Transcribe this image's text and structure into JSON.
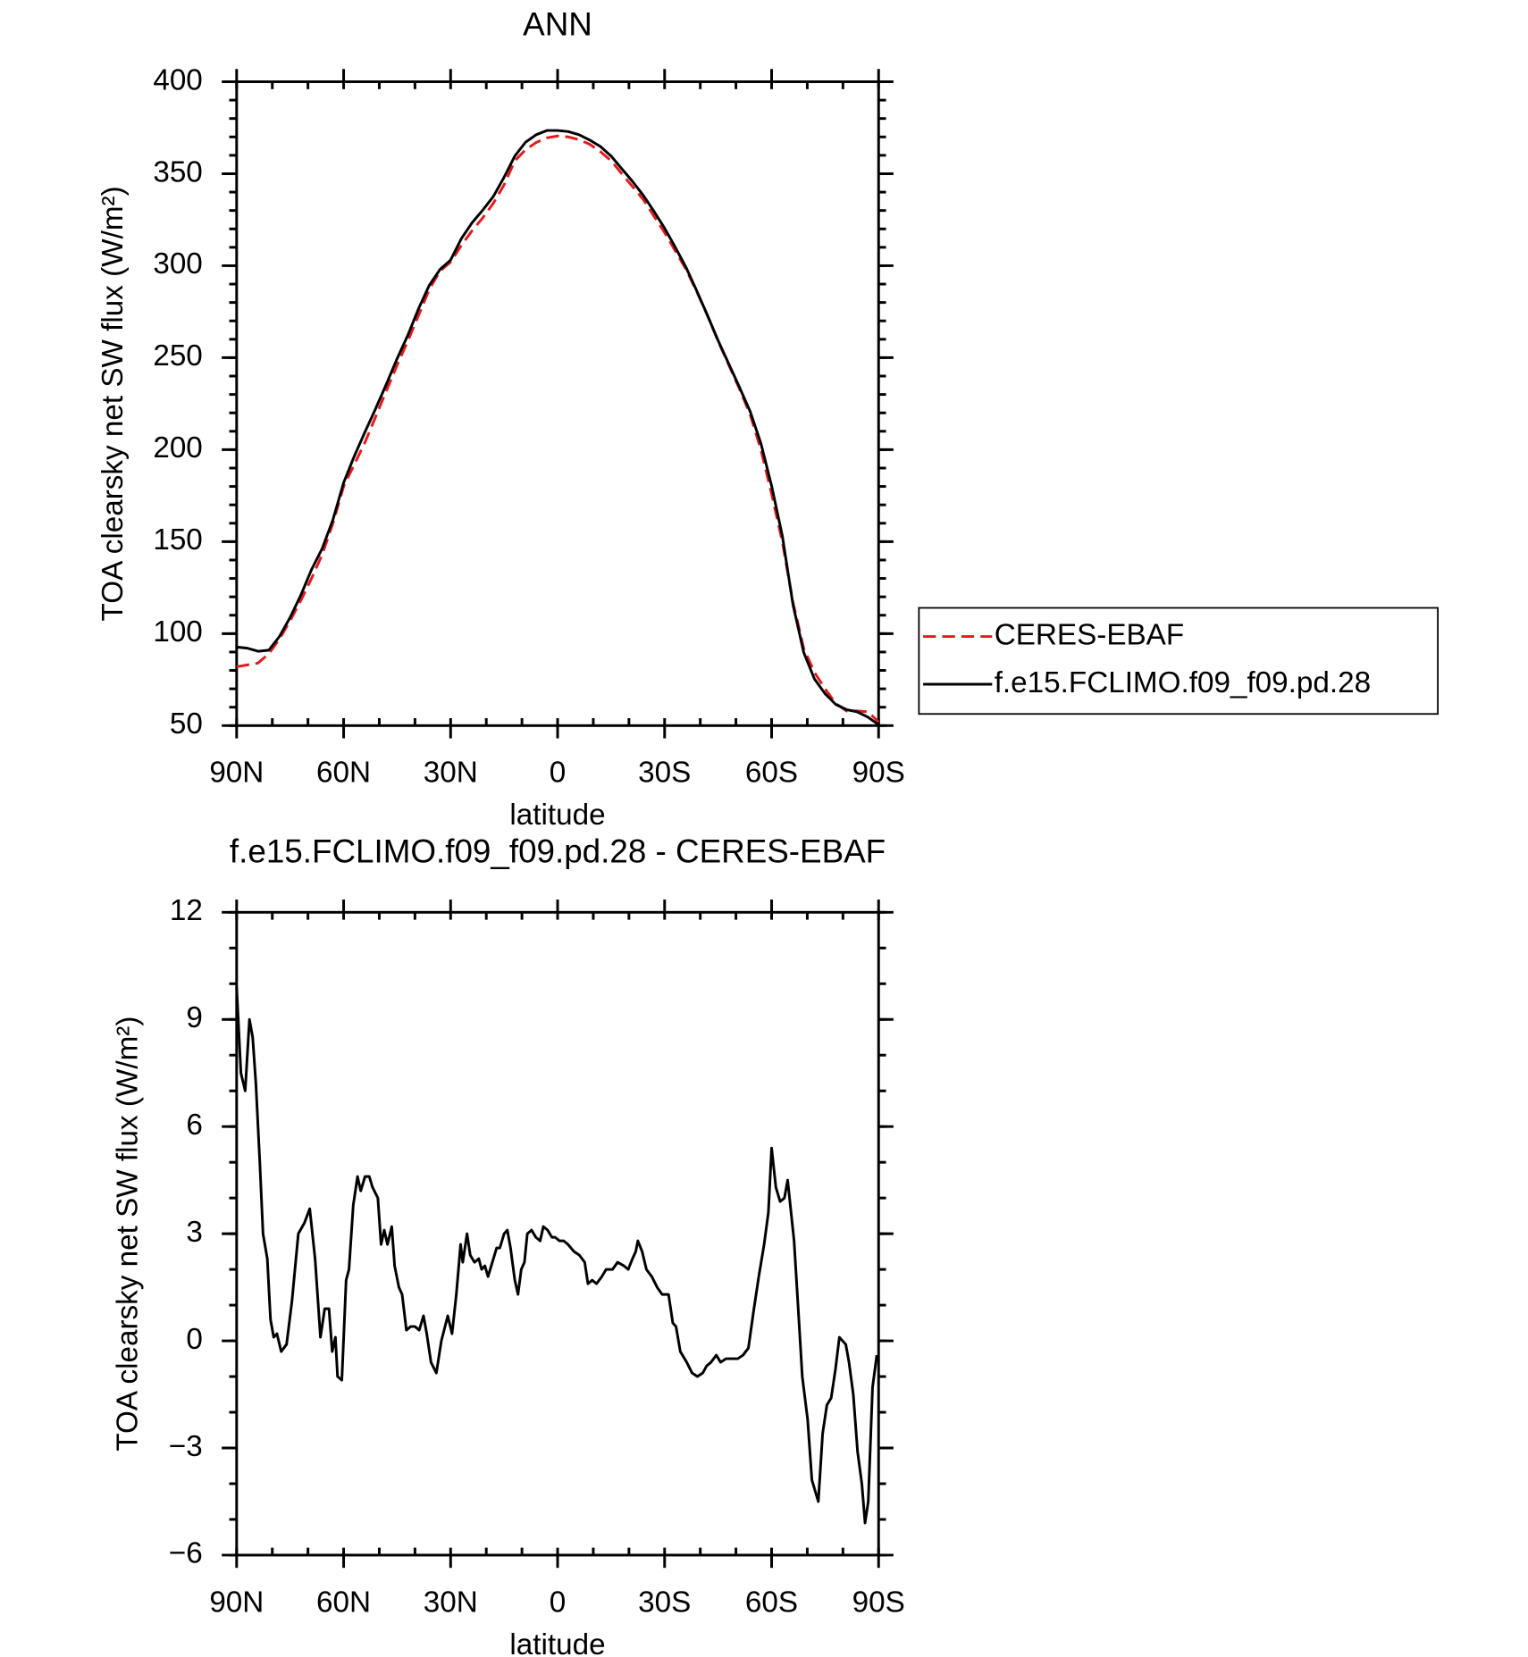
{
  "chart_data": [
    {
      "type": "line",
      "title": "ANN",
      "x_label": "latitude",
      "y_label": "TOA clearsky net SW flux (W/m²)",
      "xlim": [
        90,
        -90
      ],
      "xticks": [
        {
          "value": 90,
          "label": "90N"
        },
        {
          "value": 60,
          "label": "60N"
        },
        {
          "value": 30,
          "label": "30N"
        },
        0,
        {
          "value": -30,
          "label": "30S"
        },
        {
          "value": -60,
          "label": "60S"
        },
        {
          "value": -90,
          "label": "90S"
        }
      ],
      "xminor_ticks": [
        90,
        80,
        70,
        60,
        50,
        40,
        30,
        20,
        10,
        0,
        -10,
        -20,
        -30,
        -40,
        -50,
        -60,
        -70,
        -80,
        -90
      ],
      "ylim": [
        50,
        400
      ],
      "yticks": [
        50,
        100,
        150,
        200,
        250,
        300,
        350,
        400
      ],
      "yminor_ticks": [
        50,
        60,
        70,
        80,
        90,
        100,
        110,
        120,
        130,
        140,
        150,
        160,
        170,
        180,
        190,
        200,
        210,
        220,
        230,
        240,
        250,
        260,
        270,
        280,
        290,
        300,
        310,
        320,
        330,
        340,
        350,
        360,
        370,
        380,
        390,
        400
      ],
      "legend": "outside-right",
      "series": [
        {
          "name": "CERES-EBAF",
          "color": "#e41a1c",
          "dash": true,
          "x": [
            90,
            87,
            84,
            81,
            78,
            75,
            72,
            69,
            66,
            63,
            60,
            57,
            54,
            51,
            48,
            45,
            42,
            39,
            36,
            33,
            30,
            27,
            24,
            21,
            18,
            15,
            12,
            9,
            6,
            3,
            0,
            -3,
            -6,
            -9,
            -12,
            -15,
            -18,
            -21,
            -24,
            -27,
            -30,
            -33,
            -36,
            -39,
            -42,
            -45,
            -48,
            -51,
            -54,
            -57,
            -60,
            -63,
            -66,
            -69,
            -72,
            -75,
            -78,
            -81,
            -84,
            -87,
            -90
          ],
          "values": [
            82,
            83,
            84,
            89,
            97,
            107,
            118,
            130,
            143,
            160,
            180,
            192,
            204,
            218,
            232,
            246,
            259,
            273,
            287,
            297,
            302,
            311,
            319,
            326,
            334,
            344,
            357,
            363,
            367,
            369.5,
            370.5,
            370,
            368.5,
            366,
            362,
            357,
            350,
            343,
            336,
            327,
            318,
            308,
            298,
            286,
            273,
            259,
            246,
            233,
            219,
            200,
            176,
            150,
            117,
            92,
            79,
            70,
            62,
            58,
            58,
            57.5,
            52
          ]
        },
        {
          "name": "f.e15.FCLIMO.f09_f09.pd.28",
          "color": "#000000",
          "dash": false,
          "x": [
            90,
            87,
            84,
            81,
            78,
            75,
            72,
            69,
            66,
            63,
            60,
            57,
            54,
            51,
            48,
            45,
            42,
            39,
            36,
            33,
            30,
            27,
            24,
            21,
            18,
            15,
            12,
            9,
            6,
            3,
            0,
            -3,
            -6,
            -9,
            -12,
            -15,
            -18,
            -21,
            -24,
            -27,
            -30,
            -33,
            -36,
            -39,
            -42,
            -45,
            -48,
            -51,
            -54,
            -57,
            -60,
            -63,
            -66,
            -69,
            -72,
            -75,
            -78,
            -81,
            -84,
            -87,
            -90
          ],
          "values": [
            92.7,
            92.1,
            90.4,
            91,
            98.4,
            108.8,
            120.9,
            134.8,
            146.3,
            161.9,
            182,
            196.5,
            209.7,
            222.4,
            235.7,
            249.5,
            262.2,
            276.6,
            289.3,
            297.9,
            303.1,
            314.7,
            323.3,
            330.2,
            337.7,
            348.1,
            359.6,
            367.1,
            371.2,
            373.5,
            373.5,
            372.9,
            371.2,
            368.3,
            364.8,
            359.6,
            352.7,
            345.8,
            338.3,
            329.6,
            320.4,
            310,
            299.1,
            286.4,
            273.1,
            259.3,
            246.6,
            233.9,
            220.7,
            203.4,
            180.3,
            153.2,
            115.7,
            89.8,
            75.4,
            67.3,
            61.5,
            58.7,
            57.5,
            54.6,
            50.5
          ]
        }
      ]
    },
    {
      "type": "line",
      "title": "f.e15.FCLIMO.f09_f09.pd.28 - CERES-EBAF",
      "x_label": "latitude",
      "y_label": "TOA clearsky net SW flux (W/m²)",
      "xlim": [
        90,
        -90
      ],
      "xticks": [
        {
          "value": 90,
          "label": "90N"
        },
        {
          "value": 60,
          "label": "60N"
        },
        {
          "value": 30,
          "label": "30N"
        },
        0,
        {
          "value": -30,
          "label": "30S"
        },
        {
          "value": -60,
          "label": "60S"
        },
        {
          "value": -90,
          "label": "90S"
        }
      ],
      "xminor_ticks": [
        90,
        80,
        70,
        60,
        50,
        40,
        30,
        20,
        10,
        0,
        -10,
        -20,
        -30,
        -40,
        -50,
        -60,
        -70,
        -80,
        -90
      ],
      "ylim": [
        -6,
        12
      ],
      "yticks": [
        {
          "value": -6,
          "label": "−6"
        },
        {
          "value": -3,
          "label": "−3"
        },
        0,
        3,
        6,
        9,
        12
      ],
      "yminor_ticks": [
        -6,
        -5,
        -4,
        -3,
        -2,
        -1,
        0,
        1,
        2,
        3,
        4,
        5,
        6,
        7,
        8,
        9,
        10,
        11,
        12
      ],
      "series": [
        {
          "color": "#000000",
          "dash": false,
          "x": [
            90,
            88.8,
            87.6,
            86.4,
            85.5,
            84.6,
            83.5,
            82.6,
            81.4,
            80.5,
            79.6,
            78.7,
            77.5,
            76,
            74.5,
            72.7,
            71,
            69.5,
            68,
            66.5,
            65.3,
            64.1,
            63.2,
            62.3,
            61.7,
            60.5,
            59.3,
            58.5,
            57.3,
            56.1,
            55.2,
            54,
            52.8,
            51.9,
            50.4,
            49.5,
            48.6,
            47.7,
            46.5,
            45.7,
            44.5,
            43.6,
            42.4,
            41.2,
            40,
            38.8,
            37.6,
            36.7,
            35.5,
            34,
            32.6,
            30.8,
            29.6,
            28.4,
            27.2,
            26.6,
            25.4,
            24.5,
            23.3,
            22.1,
            21.3,
            20.4,
            19.5,
            18.3,
            17.1,
            16.2,
            15,
            14.1,
            13.2,
            12,
            11.1,
            10.2,
            9.3,
            8.5,
            7.3,
            6.1,
            4.9,
            4,
            2.8,
            1.6,
            0.7,
            -0.5,
            -1.7,
            -2.9,
            -4.6,
            -6.1,
            -7.6,
            -8.5,
            -9.7,
            -10.9,
            -12.4,
            -13.6,
            -15.4,
            -16.8,
            -18.6,
            -19.8,
            -21,
            -21.9,
            -22.5,
            -23.7,
            -24.9,
            -26.4,
            -27.9,
            -29.3,
            -31.1,
            -32.3,
            -33.2,
            -34.4,
            -36.2,
            -37.7,
            -39.2,
            -40.7,
            -41.8,
            -43,
            -44.5,
            -45.7,
            -47.2,
            -49,
            -50.5,
            -52,
            -53.5,
            -54.9,
            -56.4,
            -57.9,
            -59.1,
            -60,
            -61.2,
            -62.4,
            -63.6,
            -64.5,
            -66.3,
            -67.4,
            -68.6,
            -70.1,
            -71.3,
            -73.1,
            -74.3,
            -75.5,
            -76.7,
            -77.9,
            -79,
            -80.8,
            -81.7,
            -82.9,
            -84.1,
            -85.3,
            -86.2,
            -87.1,
            -88.3,
            -89.5
          ],
          "values": [
            9.9,
            7.5,
            7.0,
            9.0,
            8.5,
            7.2,
            5,
            3.0,
            2.3,
            0.6,
            0.1,
            0.2,
            -0.3,
            -0.1,
            1.1,
            3.0,
            3.3,
            3.7,
            2.3,
            0.1,
            0.9,
            0.9,
            -0.3,
            0.1,
            -1.0,
            -1.1,
            1.7,
            2.0,
            3.8,
            4.6,
            4.2,
            4.6,
            4.6,
            4.3,
            4.0,
            2.7,
            3.1,
            2.7,
            3.2,
            2.1,
            1.5,
            1.3,
            0.3,
            0.4,
            0.4,
            0.3,
            0.7,
            0.2,
            -0.6,
            -0.9,
            0,
            0.7,
            0.2,
            1.3,
            2.7,
            2.2,
            3.0,
            2.4,
            2.2,
            2.3,
            2.0,
            2.1,
            1.8,
            2.2,
            2.6,
            2.6,
            3.0,
            3.1,
            2.6,
            1.7,
            1.3,
            2.0,
            2.2,
            3.0,
            3.1,
            2.9,
            2.8,
            3.2,
            3.1,
            2.9,
            2.9,
            2.8,
            2.8,
            2.7,
            2.5,
            2.4,
            2.2,
            1.6,
            1.7,
            1.6,
            1.8,
            2.0,
            2.0,
            2.2,
            2.1,
            2.0,
            2.3,
            2.5,
            2.8,
            2.5,
            2.0,
            1.8,
            1.5,
            1.3,
            1.3,
            0.5,
            0.4,
            -0.3,
            -0.6,
            -0.9,
            -1.0,
            -0.9,
            -0.7,
            -0.6,
            -0.4,
            -0.6,
            -0.5,
            -0.5,
            -0.5,
            -0.4,
            -0.2,
            0.8,
            1.8,
            2.7,
            3.6,
            5.4,
            4.3,
            3.9,
            4.0,
            4.5,
            2.8,
            1.0,
            -1.0,
            -2.2,
            -3.9,
            -4.5,
            -2.6,
            -1.8,
            -1.6,
            -0.8,
            0.1,
            -0.1,
            -0.6,
            -1.5,
            -3.1,
            -4.0,
            -5.1,
            -4.5,
            -1.3,
            -0.4
          ]
        }
      ]
    }
  ]
}
